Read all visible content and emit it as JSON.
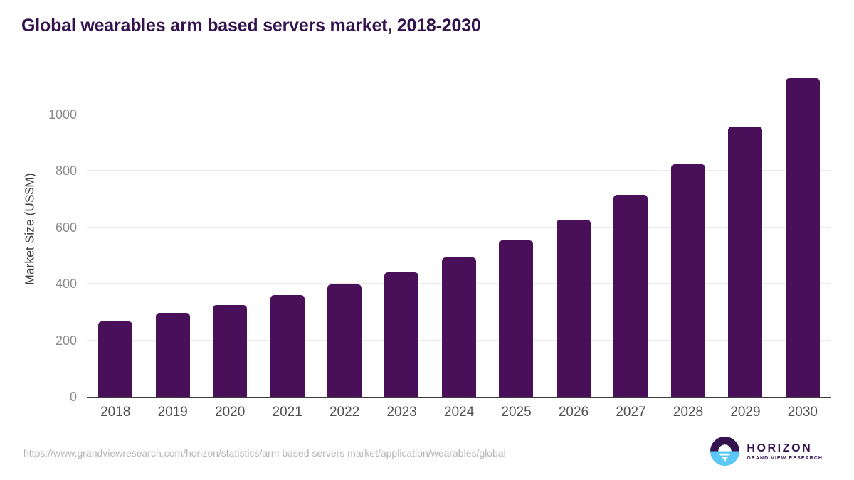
{
  "chart_data": {
    "type": "bar",
    "title": "Global wearables arm based servers market, 2018-2030",
    "xlabel": "",
    "ylabel": "Market Size (US$M)",
    "categories": [
      "2018",
      "2019",
      "2020",
      "2021",
      "2022",
      "2023",
      "2024",
      "2025",
      "2026",
      "2027",
      "2028",
      "2029",
      "2030"
    ],
    "values": [
      268,
      297,
      324,
      361,
      398,
      441,
      494,
      553,
      627,
      716,
      823,
      957,
      1127
    ],
    "yticks": [
      0,
      200,
      400,
      600,
      800,
      1000
    ],
    "ylim": [
      0,
      1178
    ],
    "grid": true,
    "legend": false,
    "bar_color": "#491059"
  },
  "source": {
    "url": "https://www.grandviewresearch.com/horizon/statistics/arm based servers market/application/wearables/global"
  },
  "logo": {
    "name": "HORIZON",
    "subtitle": "GRAND VIEW RESEARCH"
  },
  "colors": {
    "title": "#33124e",
    "bar": "#491059",
    "axis_line": "#3c3c3c",
    "gridline": "#eaeaea",
    "tick_label": "#8a8a8a",
    "year_label": "#4f4f4f",
    "url_text": "#b5b5b5",
    "logo_purple": "#33124e",
    "logo_blue": "#5ac8f5"
  }
}
